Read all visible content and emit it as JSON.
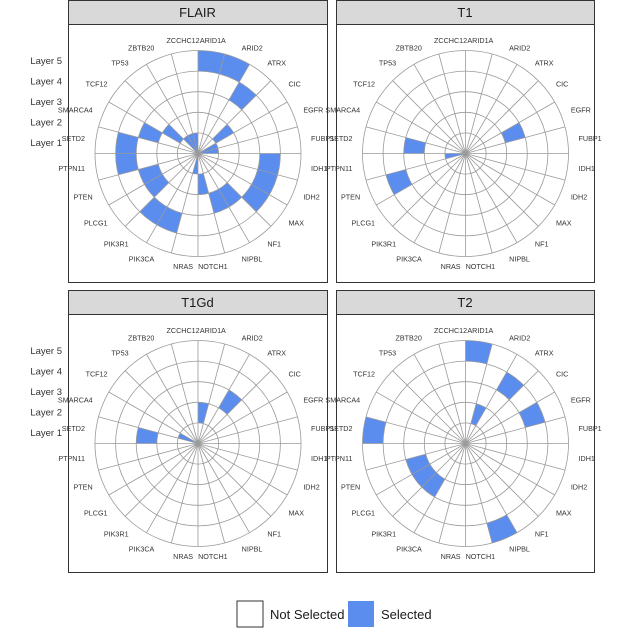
{
  "chart_data": {
    "type": "polar-bar",
    "categories": [
      "ARID1A",
      "ARID2",
      "ATRX",
      "CIC",
      "EGFR",
      "FUBP1",
      "IDH1",
      "IDH2",
      "MAX",
      "NF1",
      "NIPBL",
      "NOTCH1",
      "NRAS",
      "PIK3CA",
      "PIK3R1",
      "PLCG1",
      "PTEN",
      "PTPN11",
      "SETD2",
      "SMARCA4",
      "TCF12",
      "TP53",
      "ZBTB20",
      "ZCCHC12"
    ],
    "layers": [
      "Layer 1",
      "Layer 2",
      "Layer 3",
      "Layer 4",
      "Layer 5"
    ],
    "panels": [
      {
        "title": "FLAIR",
        "selected_layer": [
          5,
          5,
          4,
          2,
          1,
          1,
          4,
          4,
          4,
          3,
          3,
          2,
          1,
          4,
          4,
          3,
          3,
          4,
          4,
          3,
          2,
          1,
          1,
          1
        ]
      },
      {
        "title": "T1",
        "selected_layer": [
          0,
          0,
          0,
          0,
          3,
          0,
          0,
          0,
          0,
          0,
          0,
          0,
          0,
          0,
          0,
          0,
          4,
          1,
          3,
          0,
          0,
          0,
          0,
          0
        ]
      },
      {
        "title": "T1Gd",
        "selected_layer": [
          2,
          0,
          3,
          0,
          0,
          0,
          0,
          0,
          0,
          0,
          0,
          0,
          0,
          0,
          0,
          0,
          0,
          0,
          3,
          1,
          0,
          0,
          0,
          0
        ]
      },
      {
        "title": "T2",
        "selected_layer": [
          5,
          2,
          4,
          0,
          4,
          0,
          0,
          0,
          0,
          0,
          5,
          0,
          0,
          0,
          3,
          3,
          3,
          0,
          5,
          0,
          0,
          0,
          0,
          0
        ]
      }
    ],
    "legend": [
      {
        "label": "Not Selected",
        "color": "#ffffff"
      },
      {
        "label": "Selected",
        "color": "#5b8def"
      }
    ]
  }
}
